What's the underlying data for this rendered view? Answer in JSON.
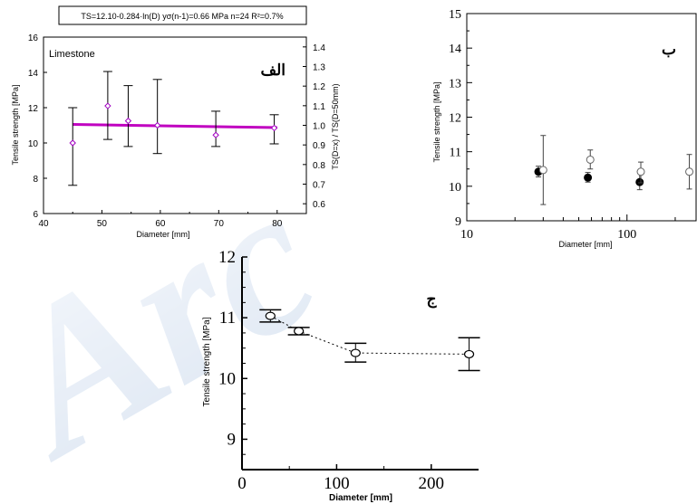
{
  "watermark": "Arc",
  "chart_data": [
    {
      "panel": "الف",
      "type": "scatter",
      "formula_box": "TS=12.10-0.284·ln(D)   yσ(n-1)=0.66 MPa   n=24  R²=0.7%",
      "inset_label": "Limestone",
      "xlabel": "Diameter [mm]",
      "ylabel": "Tensile strength [MPa]",
      "y2label": "TS(D=x) / TS(D=50mm)",
      "xlim": [
        40,
        85
      ],
      "ylim": [
        6,
        16
      ],
      "y2lim": [
        0.55,
        1.45
      ],
      "x_ticks": [
        "40",
        "50",
        "60",
        "70",
        "80"
      ],
      "y_ticks": [
        "6",
        "8",
        "10",
        "12",
        "14",
        "16"
      ],
      "y2_ticks": [
        "0.6",
        "0.7",
        "0.8",
        "0.9",
        "1.0",
        "1.1",
        "1.2",
        "1.3",
        "1.4"
      ],
      "points": [
        {
          "x": 45,
          "y": 10.0,
          "lo": 7.6,
          "hi": 12.0
        },
        {
          "x": 51,
          "y": 12.1,
          "lo": 10.2,
          "hi": 14.05
        },
        {
          "x": 54.5,
          "y": 11.25,
          "lo": 9.8,
          "hi": 13.25
        },
        {
          "x": 59.5,
          "y": 11.0,
          "lo": 9.4,
          "hi": 13.6
        },
        {
          "x": 69.5,
          "y": 10.45,
          "lo": 9.8,
          "hi": 11.8
        },
        {
          "x": 79.5,
          "y": 10.85,
          "lo": 9.95,
          "hi": 11.6
        }
      ],
      "fit_line": {
        "x": [
          45,
          80
        ],
        "y": [
          11.05,
          10.87
        ]
      },
      "colors": {
        "points": "#a000c0",
        "fit": "#c000c0"
      }
    },
    {
      "panel": "ب",
      "type": "scatter",
      "xlabel": "Diameter [mm]",
      "ylabel": "Tensile strength [MPa]",
      "xscale": "log",
      "xlim": [
        10,
        270
      ],
      "ylim": [
        9,
        15
      ],
      "x_ticks": [
        "10",
        "100"
      ],
      "y_ticks": [
        "9",
        "10",
        "11",
        "12",
        "13",
        "14",
        "15"
      ],
      "series": [
        {
          "marker": "filled",
          "points": [
            {
              "x": 28,
              "y": 10.42,
              "lo": 10.27,
              "hi": 10.58
            },
            {
              "x": 57,
              "y": 10.25,
              "lo": 10.12,
              "hi": 10.4
            },
            {
              "x": 120,
              "y": 10.12,
              "lo": 9.9,
              "hi": 10.42
            }
          ]
        },
        {
          "marker": "open",
          "points": [
            {
              "x": 30,
              "y": 10.47,
              "lo": 9.47,
              "hi": 11.47
            },
            {
              "x": 59,
              "y": 10.77,
              "lo": 10.5,
              "hi": 11.05
            },
            {
              "x": 122,
              "y": 10.42,
              "lo": 10.1,
              "hi": 10.7
            },
            {
              "x": 245,
              "y": 10.42,
              "lo": 9.92,
              "hi": 10.92
            }
          ]
        }
      ]
    },
    {
      "panel": "ج",
      "type": "scatter",
      "xlabel": "Diameter [mm]",
      "ylabel": "Tensile strength [MPa]",
      "xlim": [
        0,
        250
      ],
      "ylim": [
        8.5,
        12
      ],
      "x_ticks": [
        "0",
        "100",
        "200"
      ],
      "y_ticks": [
        "9",
        "10",
        "11",
        "12"
      ],
      "points": [
        {
          "x": 30,
          "y": 11.03,
          "lo": 10.93,
          "hi": 11.13
        },
        {
          "x": 60,
          "y": 10.78,
          "lo": 10.72,
          "hi": 10.84
        },
        {
          "x": 120,
          "y": 10.42,
          "lo": 10.27,
          "hi": 10.58
        },
        {
          "x": 240,
          "y": 10.4,
          "lo": 10.13,
          "hi": 10.67
        }
      ],
      "connected": "dotted"
    }
  ]
}
